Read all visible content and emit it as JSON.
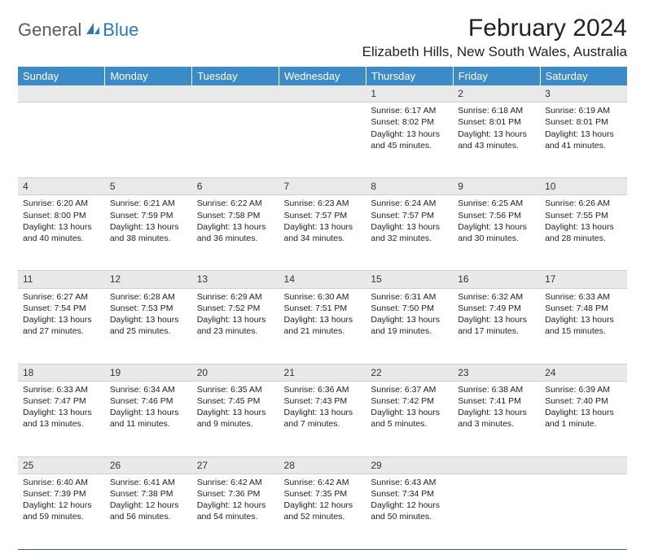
{
  "logo": {
    "general": "General",
    "blue": "Blue",
    "icon_color": "#2a7ab8"
  },
  "title": "February 2024",
  "location": "Elizabeth Hills, New South Wales, Australia",
  "header_bg": "#3b8bc8",
  "header_fg": "#ffffff",
  "daynum_bg": "#e9e9e9",
  "rule_color": "#2a6aa0",
  "day_headers": [
    "Sunday",
    "Monday",
    "Tuesday",
    "Wednesday",
    "Thursday",
    "Friday",
    "Saturday"
  ],
  "weeks": [
    {
      "nums": [
        "",
        "",
        "",
        "",
        "1",
        "2",
        "3"
      ],
      "cells": [
        null,
        null,
        null,
        null,
        {
          "sr": "Sunrise: 6:17 AM",
          "ss": "Sunset: 8:02 PM",
          "d1": "Daylight: 13 hours",
          "d2": "and 45 minutes."
        },
        {
          "sr": "Sunrise: 6:18 AM",
          "ss": "Sunset: 8:01 PM",
          "d1": "Daylight: 13 hours",
          "d2": "and 43 minutes."
        },
        {
          "sr": "Sunrise: 6:19 AM",
          "ss": "Sunset: 8:01 PM",
          "d1": "Daylight: 13 hours",
          "d2": "and 41 minutes."
        }
      ]
    },
    {
      "nums": [
        "4",
        "5",
        "6",
        "7",
        "8",
        "9",
        "10"
      ],
      "cells": [
        {
          "sr": "Sunrise: 6:20 AM",
          "ss": "Sunset: 8:00 PM",
          "d1": "Daylight: 13 hours",
          "d2": "and 40 minutes."
        },
        {
          "sr": "Sunrise: 6:21 AM",
          "ss": "Sunset: 7:59 PM",
          "d1": "Daylight: 13 hours",
          "d2": "and 38 minutes."
        },
        {
          "sr": "Sunrise: 6:22 AM",
          "ss": "Sunset: 7:58 PM",
          "d1": "Daylight: 13 hours",
          "d2": "and 36 minutes."
        },
        {
          "sr": "Sunrise: 6:23 AM",
          "ss": "Sunset: 7:57 PM",
          "d1": "Daylight: 13 hours",
          "d2": "and 34 minutes."
        },
        {
          "sr": "Sunrise: 6:24 AM",
          "ss": "Sunset: 7:57 PM",
          "d1": "Daylight: 13 hours",
          "d2": "and 32 minutes."
        },
        {
          "sr": "Sunrise: 6:25 AM",
          "ss": "Sunset: 7:56 PM",
          "d1": "Daylight: 13 hours",
          "d2": "and 30 minutes."
        },
        {
          "sr": "Sunrise: 6:26 AM",
          "ss": "Sunset: 7:55 PM",
          "d1": "Daylight: 13 hours",
          "d2": "and 28 minutes."
        }
      ]
    },
    {
      "nums": [
        "11",
        "12",
        "13",
        "14",
        "15",
        "16",
        "17"
      ],
      "cells": [
        {
          "sr": "Sunrise: 6:27 AM",
          "ss": "Sunset: 7:54 PM",
          "d1": "Daylight: 13 hours",
          "d2": "and 27 minutes."
        },
        {
          "sr": "Sunrise: 6:28 AM",
          "ss": "Sunset: 7:53 PM",
          "d1": "Daylight: 13 hours",
          "d2": "and 25 minutes."
        },
        {
          "sr": "Sunrise: 6:29 AM",
          "ss": "Sunset: 7:52 PM",
          "d1": "Daylight: 13 hours",
          "d2": "and 23 minutes."
        },
        {
          "sr": "Sunrise: 6:30 AM",
          "ss": "Sunset: 7:51 PM",
          "d1": "Daylight: 13 hours",
          "d2": "and 21 minutes."
        },
        {
          "sr": "Sunrise: 6:31 AM",
          "ss": "Sunset: 7:50 PM",
          "d1": "Daylight: 13 hours",
          "d2": "and 19 minutes."
        },
        {
          "sr": "Sunrise: 6:32 AM",
          "ss": "Sunset: 7:49 PM",
          "d1": "Daylight: 13 hours",
          "d2": "and 17 minutes."
        },
        {
          "sr": "Sunrise: 6:33 AM",
          "ss": "Sunset: 7:48 PM",
          "d1": "Daylight: 13 hours",
          "d2": "and 15 minutes."
        }
      ]
    },
    {
      "nums": [
        "18",
        "19",
        "20",
        "21",
        "22",
        "23",
        "24"
      ],
      "cells": [
        {
          "sr": "Sunrise: 6:33 AM",
          "ss": "Sunset: 7:47 PM",
          "d1": "Daylight: 13 hours",
          "d2": "and 13 minutes."
        },
        {
          "sr": "Sunrise: 6:34 AM",
          "ss": "Sunset: 7:46 PM",
          "d1": "Daylight: 13 hours",
          "d2": "and 11 minutes."
        },
        {
          "sr": "Sunrise: 6:35 AM",
          "ss": "Sunset: 7:45 PM",
          "d1": "Daylight: 13 hours",
          "d2": "and 9 minutes."
        },
        {
          "sr": "Sunrise: 6:36 AM",
          "ss": "Sunset: 7:43 PM",
          "d1": "Daylight: 13 hours",
          "d2": "and 7 minutes."
        },
        {
          "sr": "Sunrise: 6:37 AM",
          "ss": "Sunset: 7:42 PM",
          "d1": "Daylight: 13 hours",
          "d2": "and 5 minutes."
        },
        {
          "sr": "Sunrise: 6:38 AM",
          "ss": "Sunset: 7:41 PM",
          "d1": "Daylight: 13 hours",
          "d2": "and 3 minutes."
        },
        {
          "sr": "Sunrise: 6:39 AM",
          "ss": "Sunset: 7:40 PM",
          "d1": "Daylight: 13 hours",
          "d2": "and 1 minute."
        }
      ]
    },
    {
      "nums": [
        "25",
        "26",
        "27",
        "28",
        "29",
        "",
        ""
      ],
      "cells": [
        {
          "sr": "Sunrise: 6:40 AM",
          "ss": "Sunset: 7:39 PM",
          "d1": "Daylight: 12 hours",
          "d2": "and 59 minutes."
        },
        {
          "sr": "Sunrise: 6:41 AM",
          "ss": "Sunset: 7:38 PM",
          "d1": "Daylight: 12 hours",
          "d2": "and 56 minutes."
        },
        {
          "sr": "Sunrise: 6:42 AM",
          "ss": "Sunset: 7:36 PM",
          "d1": "Daylight: 12 hours",
          "d2": "and 54 minutes."
        },
        {
          "sr": "Sunrise: 6:42 AM",
          "ss": "Sunset: 7:35 PM",
          "d1": "Daylight: 12 hours",
          "d2": "and 52 minutes."
        },
        {
          "sr": "Sunrise: 6:43 AM",
          "ss": "Sunset: 7:34 PM",
          "d1": "Daylight: 12 hours",
          "d2": "and 50 minutes."
        },
        null,
        null
      ]
    }
  ]
}
